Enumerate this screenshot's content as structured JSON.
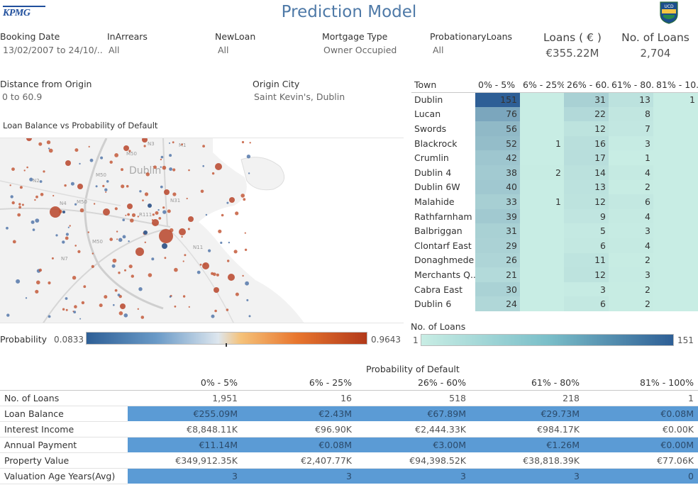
{
  "header": {
    "title": "Prediction Model",
    "left_logo_text": "KPMG",
    "right_logo_text": "UCD"
  },
  "filters": {
    "booking_date": {
      "label": "Booking Date",
      "value": "13/02/2007 to 24/10/.."
    },
    "in_arrears": {
      "label": "InArrears",
      "value": "All"
    },
    "new_loan": {
      "label": "NewLoan",
      "value": "All"
    },
    "mortgage_type": {
      "label": "Mortgage Type",
      "value": "Owner Occupied"
    },
    "probationary_loans": {
      "label": "ProbationaryLoans",
      "value": "All"
    },
    "distance_from_origin": {
      "label": "Distance from Origin",
      "value": "0 to 60.9"
    },
    "origin_city": {
      "label": "Origin City",
      "value": "Saint Kevin's, Dublin"
    }
  },
  "kpis": {
    "loans": {
      "label": "Loans ( € )",
      "value": "€355.22M"
    },
    "count": {
      "label": "No. of Loans",
      "value": "2,704"
    }
  },
  "map": {
    "title": "Loan Balance vs Probability of Default",
    "city_label": "Dublin",
    "road_labels": [
      "M50",
      "M50",
      "M50",
      "M50",
      "N4",
      "N3",
      "N7",
      "R111",
      "N31",
      "M1",
      "N2",
      "N11"
    ]
  },
  "probability_legend": {
    "label": "Probability",
    "min": "0.0833",
    "max": "0.9643"
  },
  "count_legend": {
    "label": "No. of Loans",
    "min": "1",
    "max": "151"
  },
  "town_table": {
    "headers": [
      "Town",
      "0% - 5%",
      "6% - 25%",
      "26% - 60..",
      "61% - 80..",
      "81% - 10.."
    ],
    "rows": [
      {
        "town": "Dublin",
        "v": [
          "151",
          "",
          "31",
          "13",
          "1"
        ]
      },
      {
        "town": "Lucan",
        "v": [
          "76",
          "",
          "22",
          "8",
          ""
        ]
      },
      {
        "town": "Swords",
        "v": [
          "56",
          "",
          "12",
          "7",
          ""
        ]
      },
      {
        "town": "Blackrock",
        "v": [
          "52",
          "1",
          "16",
          "3",
          ""
        ]
      },
      {
        "town": "Crumlin",
        "v": [
          "42",
          "",
          "17",
          "1",
          ""
        ]
      },
      {
        "town": "Dublin 4",
        "v": [
          "38",
          "2",
          "14",
          "4",
          ""
        ]
      },
      {
        "town": "Dublin 6W",
        "v": [
          "40",
          "",
          "13",
          "2",
          ""
        ]
      },
      {
        "town": "Malahide",
        "v": [
          "33",
          "1",
          "12",
          "6",
          ""
        ]
      },
      {
        "town": "Rathfarnham",
        "v": [
          "39",
          "",
          "9",
          "4",
          ""
        ]
      },
      {
        "town": "Balbriggan",
        "v": [
          "31",
          "",
          "5",
          "3",
          ""
        ]
      },
      {
        "town": "Clontarf East",
        "v": [
          "29",
          "",
          "6",
          "4",
          ""
        ]
      },
      {
        "town": "Donaghmede",
        "v": [
          "26",
          "",
          "11",
          "2",
          ""
        ]
      },
      {
        "town": "Merchants Q..",
        "v": [
          "21",
          "",
          "12",
          "3",
          ""
        ]
      },
      {
        "town": "Cabra East",
        "v": [
          "30",
          "",
          "3",
          "2",
          ""
        ]
      },
      {
        "town": "Dublin 6",
        "v": [
          "24",
          "",
          "6",
          "2",
          ""
        ]
      }
    ]
  },
  "summary_table": {
    "title": "Probability of Default",
    "headers": [
      "",
      "0% - 5%",
      "6% - 25%",
      "26% - 60%",
      "61% - 80%",
      "81% - 100%"
    ],
    "rows": [
      {
        "label": "No. of Loans",
        "v": [
          "1,951",
          "16",
          "518",
          "218",
          "1"
        ]
      },
      {
        "label": "Loan Balance",
        "v": [
          "€255.09M",
          "€2.43M",
          "€67.89M",
          "€29.73M",
          "€0.08M"
        ]
      },
      {
        "label": "Interest Income",
        "v": [
          "€8,848.11K",
          "€96.90K",
          "€2,444.33K",
          "€984.17K",
          "€0.00K"
        ]
      },
      {
        "label": "Annual Payment",
        "v": [
          "€11.14M",
          "€0.08M",
          "€3.00M",
          "€1.26M",
          "€0.00M"
        ]
      },
      {
        "label": "Property Value",
        "v": [
          "€349,912.35K",
          "€2,407.77K",
          "€94,398.52K",
          "€38,818.39K",
          "€77.06K"
        ]
      },
      {
        "label": "Valuation Age Years(Avg)",
        "v": [
          "3",
          "3",
          "3",
          "3",
          "0"
        ]
      }
    ]
  },
  "colors": {
    "title": "#4e79a7",
    "highlight_row": "#5b9bd5",
    "prob_low": "#2e5f96",
    "prob_high": "#b2391a",
    "count_low": "#c8ede4",
    "count_high": "#2e5f96"
  }
}
